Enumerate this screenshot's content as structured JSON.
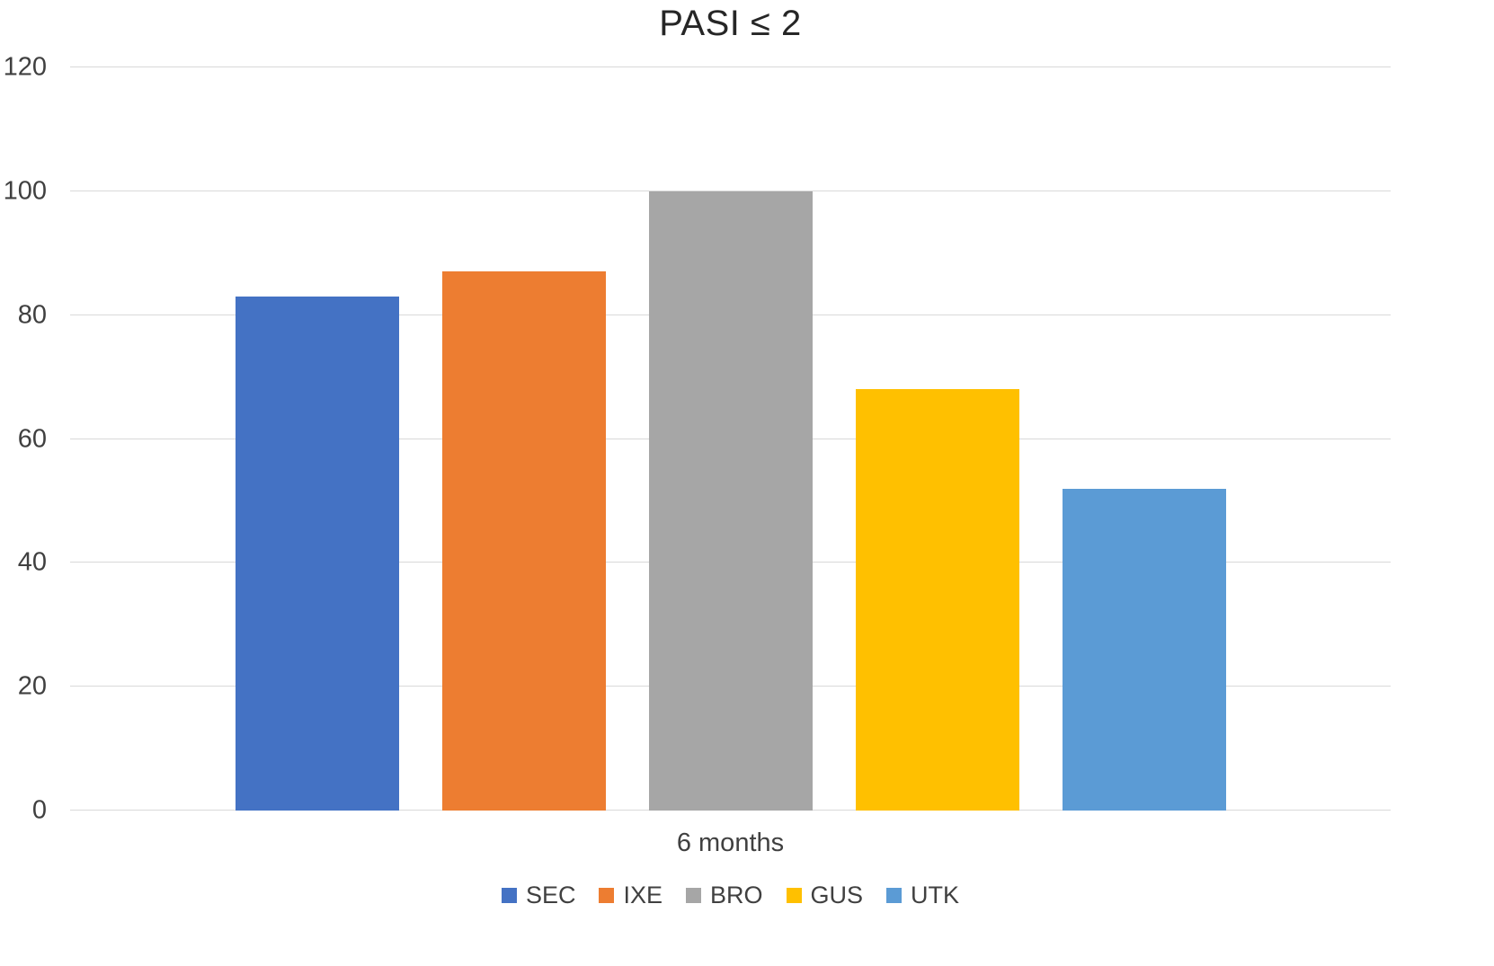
{
  "chart_data": {
    "type": "bar",
    "title": "PASI ≤ 2",
    "categories": [
      "6 months"
    ],
    "series": [
      {
        "name": "SEC",
        "values": [
          83
        ],
        "color": "#4472C4"
      },
      {
        "name": "IXE",
        "values": [
          87
        ],
        "color": "#ED7D31"
      },
      {
        "name": "BRO",
        "values": [
          100
        ],
        "color": "#A6A6A6"
      },
      {
        "name": "GUS",
        "values": [
          68
        ],
        "color": "#FFC000"
      },
      {
        "name": "UTK",
        "values": [
          52
        ],
        "color": "#5B9BD5"
      }
    ],
    "xlabel": "",
    "ylabel": "",
    "ylim": [
      0,
      120
    ],
    "yticks": [
      0,
      20,
      40,
      60,
      80,
      100,
      120
    ],
    "grid": true,
    "legend_position": "bottom",
    "colors": {
      "gridline": "#d9d9d9",
      "title_text": "#262626",
      "axis_text": "#404040",
      "background": "#ffffff"
    }
  }
}
